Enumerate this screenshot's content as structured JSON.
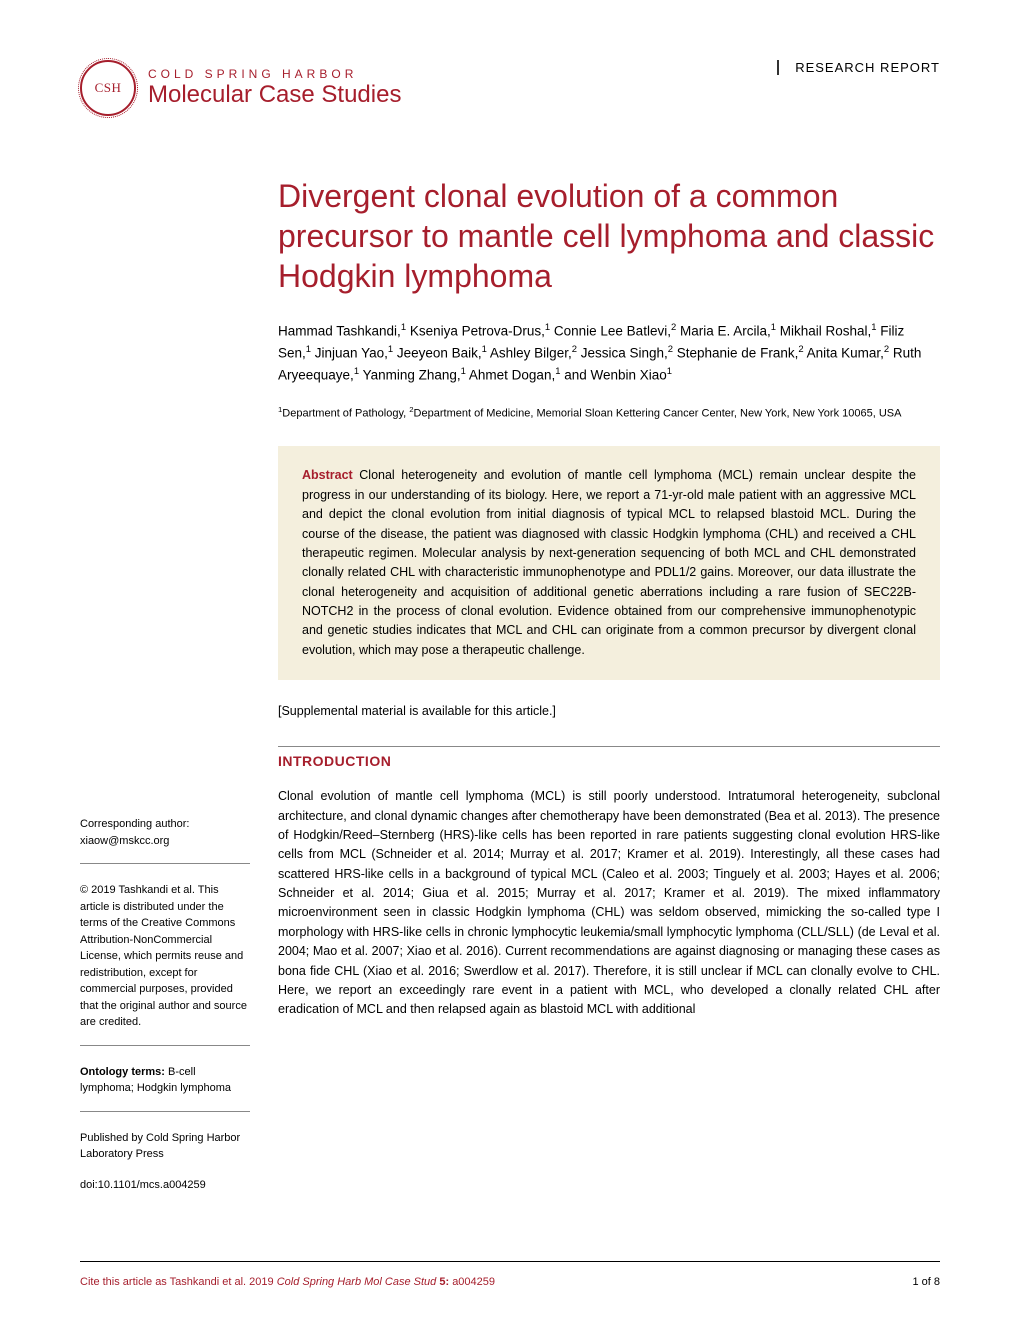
{
  "header": {
    "logo_text": "CSH",
    "publisher": "COLD SPRING HARBOR",
    "journal": "Molecular Case Studies",
    "report_type": "RESEARCH REPORT"
  },
  "article": {
    "title": "Divergent clonal evolution of a common precursor to mantle cell lymphoma and classic Hodgkin lymphoma",
    "authors_html": "Hammad Tashkandi,<sup>1</sup> Kseniya Petrova-Drus,<sup>1</sup> Connie Lee Batlevi,<sup>2</sup> Maria E. Arcila,<sup>1</sup> Mikhail Roshal,<sup>1</sup> Filiz Sen,<sup>1</sup> Jinjuan Yao,<sup>1</sup> Jeeyeon Baik,<sup>1</sup> Ashley Bilger,<sup>2</sup> Jessica Singh,<sup>2</sup> Stephanie de Frank,<sup>2</sup> Anita Kumar,<sup>2</sup> Ruth Aryeequaye,<sup>1</sup> Yanming Zhang,<sup>1</sup> Ahmet Dogan,<sup>1</sup> and Wenbin Xiao<sup>1</sup>",
    "affiliations_html": "<sup>1</sup>Department of Pathology, <sup>2</sup>Department of Medicine, Memorial Sloan Kettering Cancer Center, New York, New York 10065, USA",
    "abstract_label": "Abstract",
    "abstract": " Clonal heterogeneity and evolution of mantle cell lymphoma (MCL) remain unclear despite the progress in our understanding of its biology. Here, we report a 71-yr-old male patient with an aggressive MCL and depict the clonal evolution from initial diagnosis of typical MCL to relapsed blastoid MCL. During the course of the disease, the patient was diagnosed with classic Hodgkin lymphoma (CHL) and received a CHL therapeutic regimen. Molecular analysis by next-generation sequencing of both MCL and CHL demonstrated clonally related CHL with characteristic immunophenotype and PDL1/2 gains. Moreover, our data illustrate the clonal heterogeneity and acquisition of additional genetic aberrations including a rare fusion of SEC22B-NOTCH2 in the process of clonal evolution. Evidence obtained from our comprehensive immunophenotypic and genetic studies indicates that MCL and CHL can originate from a common precursor by divergent clonal evolution, which may pose a therapeutic challenge.",
    "supplemental": "[Supplemental material is available for this article.]",
    "section_heading": "INTRODUCTION",
    "body": "Clonal evolution of mantle cell lymphoma (MCL) is still poorly understood. Intratumoral heterogeneity, subclonal architecture, and clonal dynamic changes after chemotherapy have been demonstrated (Bea et al. 2013). The presence of Hodgkin/Reed–Sternberg (HRS)-like cells has been reported in rare patients suggesting clonal evolution HRS-like cells from MCL (Schneider et al. 2014; Murray et al. 2017; Kramer et al. 2019). Interestingly, all these cases had scattered HRS-like cells in a background of typical MCL (Caleo et al. 2003; Tinguely et al. 2003; Hayes et al. 2006; Schneider et al. 2014; Giua et al. 2015; Murray et al. 2017; Kramer et al. 2019). The mixed inflammatory microenvironment seen in classic Hodgkin lymphoma (CHL) was seldom observed, mimicking the so-called type I morphology with HRS-like cells in chronic lymphocytic leukemia/small lymphocytic lymphoma (CLL/SLL) (de Leval et al. 2004; Mao et al. 2007; Xiao et al. 2016). Current recommendations are against diagnosing or managing these cases as bona fide CHL (Xiao et al. 2016; Swerdlow et al. 2017). Therefore, it is still unclear if MCL can clonally evolve to CHL. Here, we report an exceedingly rare event in a patient with MCL, who developed a clonally related CHL after eradication of MCL and then relapsed again as blastoid MCL with additional"
  },
  "sidebar": {
    "corresponding_label": "Corresponding author:",
    "corresponding_email": "xiaow@mskcc.org",
    "copyright": "© 2019 Tashkandi et al. This article is distributed under the terms of the Creative Commons Attribution-NonCommercial License, which permits reuse and redistribution, except for commercial purposes, provided that the original author and source are credited.",
    "ontology_label": "Ontology terms:",
    "ontology_terms": " B-cell lymphoma; Hodgkin lymphoma",
    "published_by": "Published by Cold Spring Harbor Laboratory Press",
    "doi": "doi:10.1101/mcs.a004259"
  },
  "footer": {
    "cite_prefix": "Cite this article as ",
    "cite_authors": "Tashkandi et al. 2019 ",
    "cite_journal": "Cold Spring Harb Mol Case Stud ",
    "cite_volume": "5: ",
    "cite_id": "a004259",
    "page": "1 of 8"
  },
  "colors": {
    "brand": "#a61e2c",
    "abstract_bg": "#f4efdd"
  }
}
